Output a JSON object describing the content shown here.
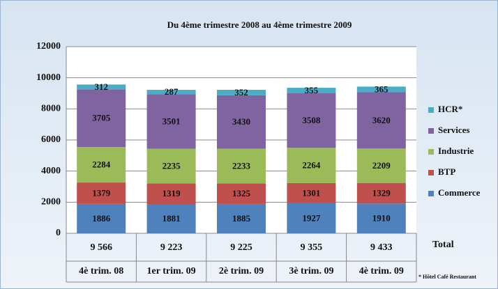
{
  "chart_data": {
    "type": "stacked_bar",
    "title": "Du 4ème trimestre 2008 au 4ème trimestre 2009",
    "categories": [
      "4è trim. 08",
      "1er trim. 09",
      "2è trim. 09",
      "3è trim. 09",
      "4è trim. 09"
    ],
    "series": [
      {
        "name": "Commerce",
        "color": "#4f81bd",
        "values": [
          1886,
          1881,
          1885,
          1927,
          1910
        ]
      },
      {
        "name": "BTP",
        "color": "#c0504d",
        "values": [
          1379,
          1319,
          1325,
          1301,
          1329
        ]
      },
      {
        "name": "Industrie",
        "color": "#9bbb59",
        "values": [
          2284,
          2235,
          2233,
          2264,
          2209
        ]
      },
      {
        "name": "Services",
        "color": "#8064a2",
        "values": [
          3705,
          3501,
          3430,
          3508,
          3620
        ]
      },
      {
        "name": "HCR*",
        "color": "#4bacc6",
        "values": [
          312,
          287,
          352,
          355,
          365
        ]
      }
    ],
    "totals": {
      "name": "Total",
      "values": [
        9566,
        9223,
        9225,
        9355,
        9433
      ],
      "value_labels": [
        "9 566",
        "9 223",
        "9 225",
        "9 355",
        "9 433"
      ]
    },
    "footnote": "* Hôtel Café Restaurant",
    "ylim": [
      0,
      12000
    ],
    "yticks": [
      0,
      2000,
      4000,
      6000,
      8000,
      10000,
      12000
    ],
    "grid": true,
    "legend": "right"
  }
}
